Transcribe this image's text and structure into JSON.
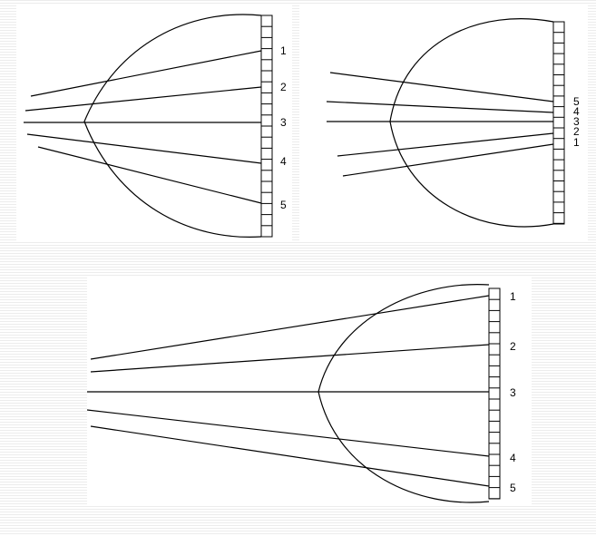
{
  "diagrams": [
    {
      "id": "a",
      "labels": [
        "1",
        "2",
        "3",
        "4",
        "5"
      ]
    },
    {
      "id": "b",
      "labels": [
        "5",
        "4",
        "3",
        "2",
        "1"
      ]
    },
    {
      "id": "c",
      "labels": [
        "1",
        "2",
        "3",
        "4",
        "5"
      ]
    }
  ]
}
